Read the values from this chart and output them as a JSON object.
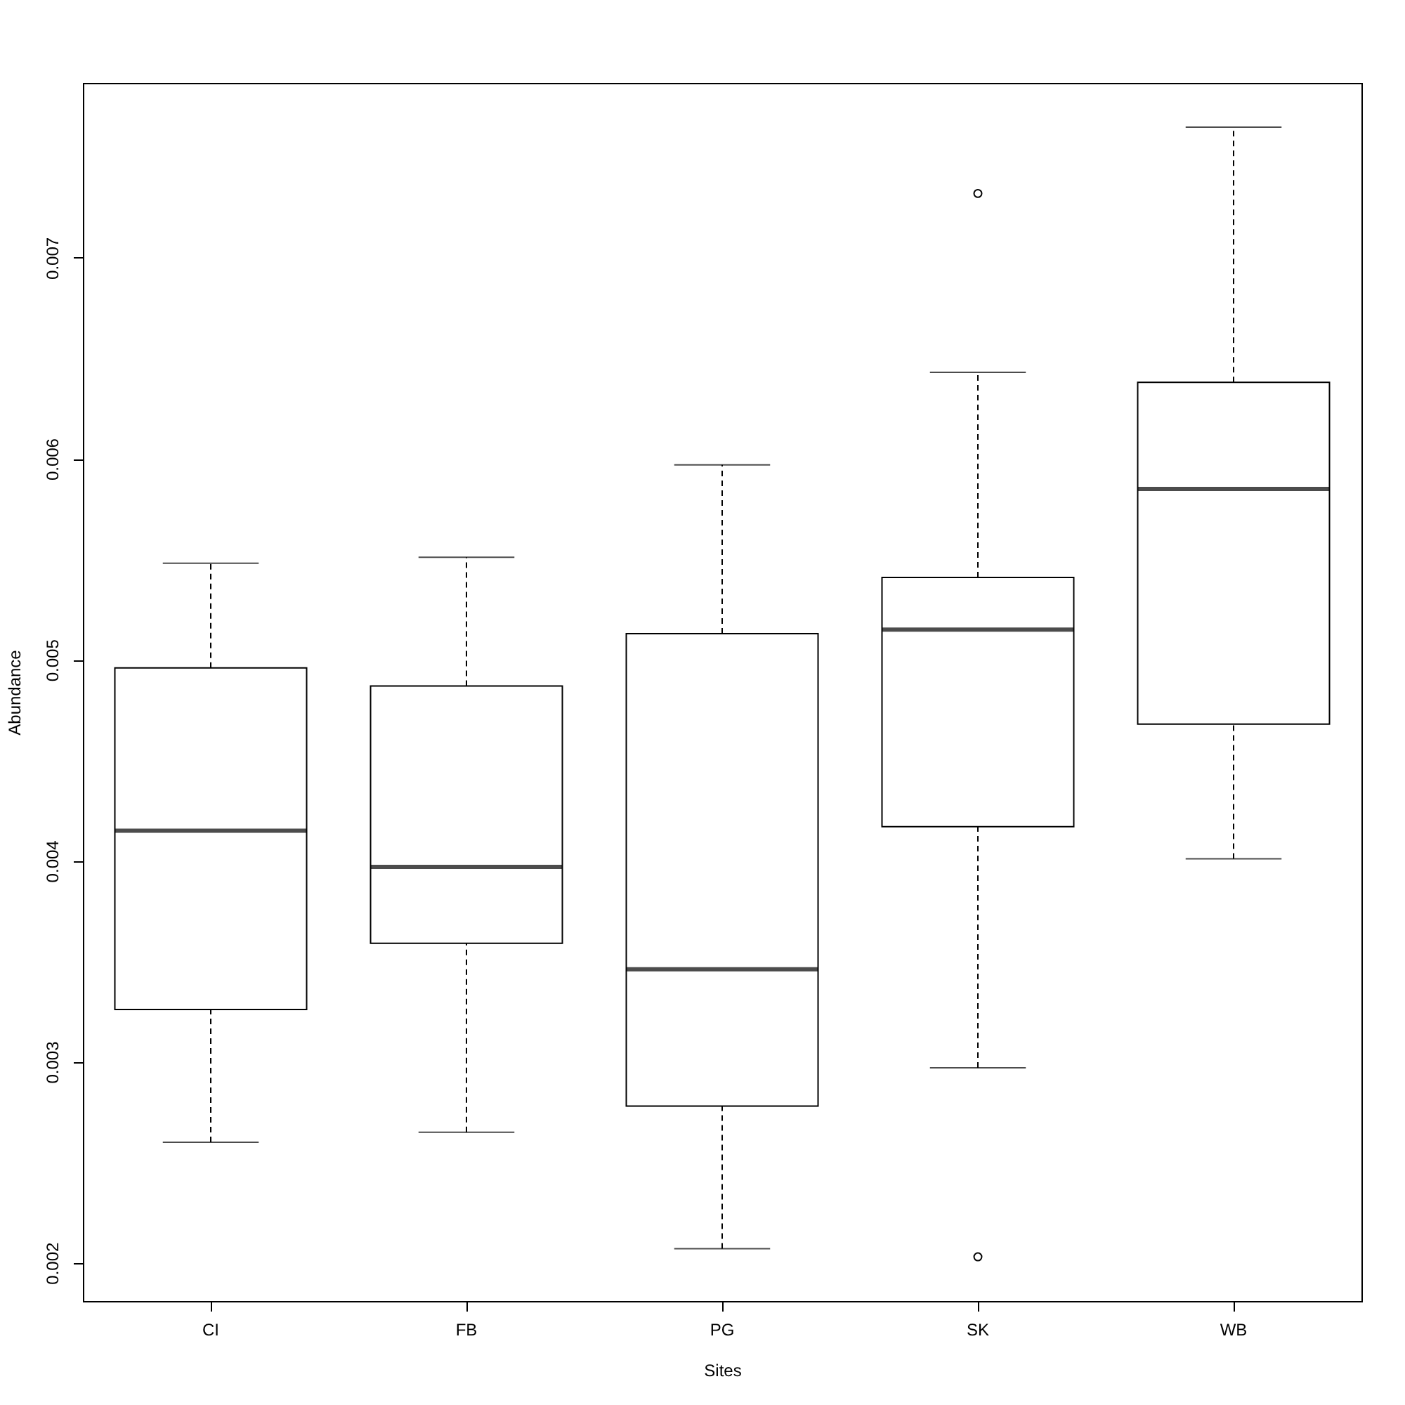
{
  "chart_data": {
    "type": "box",
    "xlabel": "Sites",
    "ylabel": "Abundance",
    "categories": [
      "CI",
      "FB",
      "PG",
      "SK",
      "WB"
    ],
    "boxes": [
      {
        "low": 0.0026,
        "q1": 0.00326,
        "median": 0.00415,
        "q3": 0.00496,
        "high": 0.00548
      },
      {
        "low": 0.00265,
        "q1": 0.00359,
        "median": 0.00397,
        "q3": 0.00487,
        "high": 0.00551
      },
      {
        "low": 0.00207,
        "q1": 0.00278,
        "median": 0.00346,
        "q3": 0.00513,
        "high": 0.00597
      },
      {
        "low": 0.00297,
        "q1": 0.00417,
        "median": 0.00515,
        "q3": 0.00541,
        "high": 0.00643,
        "outliers": [
          0.00732,
          0.00203
        ]
      },
      {
        "low": 0.00401,
        "q1": 0.00468,
        "median": 0.00585,
        "q3": 0.00638,
        "high": 0.00765
      }
    ],
    "ylim": [
      0.00181,
      0.00787
    ],
    "yticks": [
      0.002,
      0.003,
      0.004,
      0.005,
      0.006,
      0.007
    ]
  }
}
